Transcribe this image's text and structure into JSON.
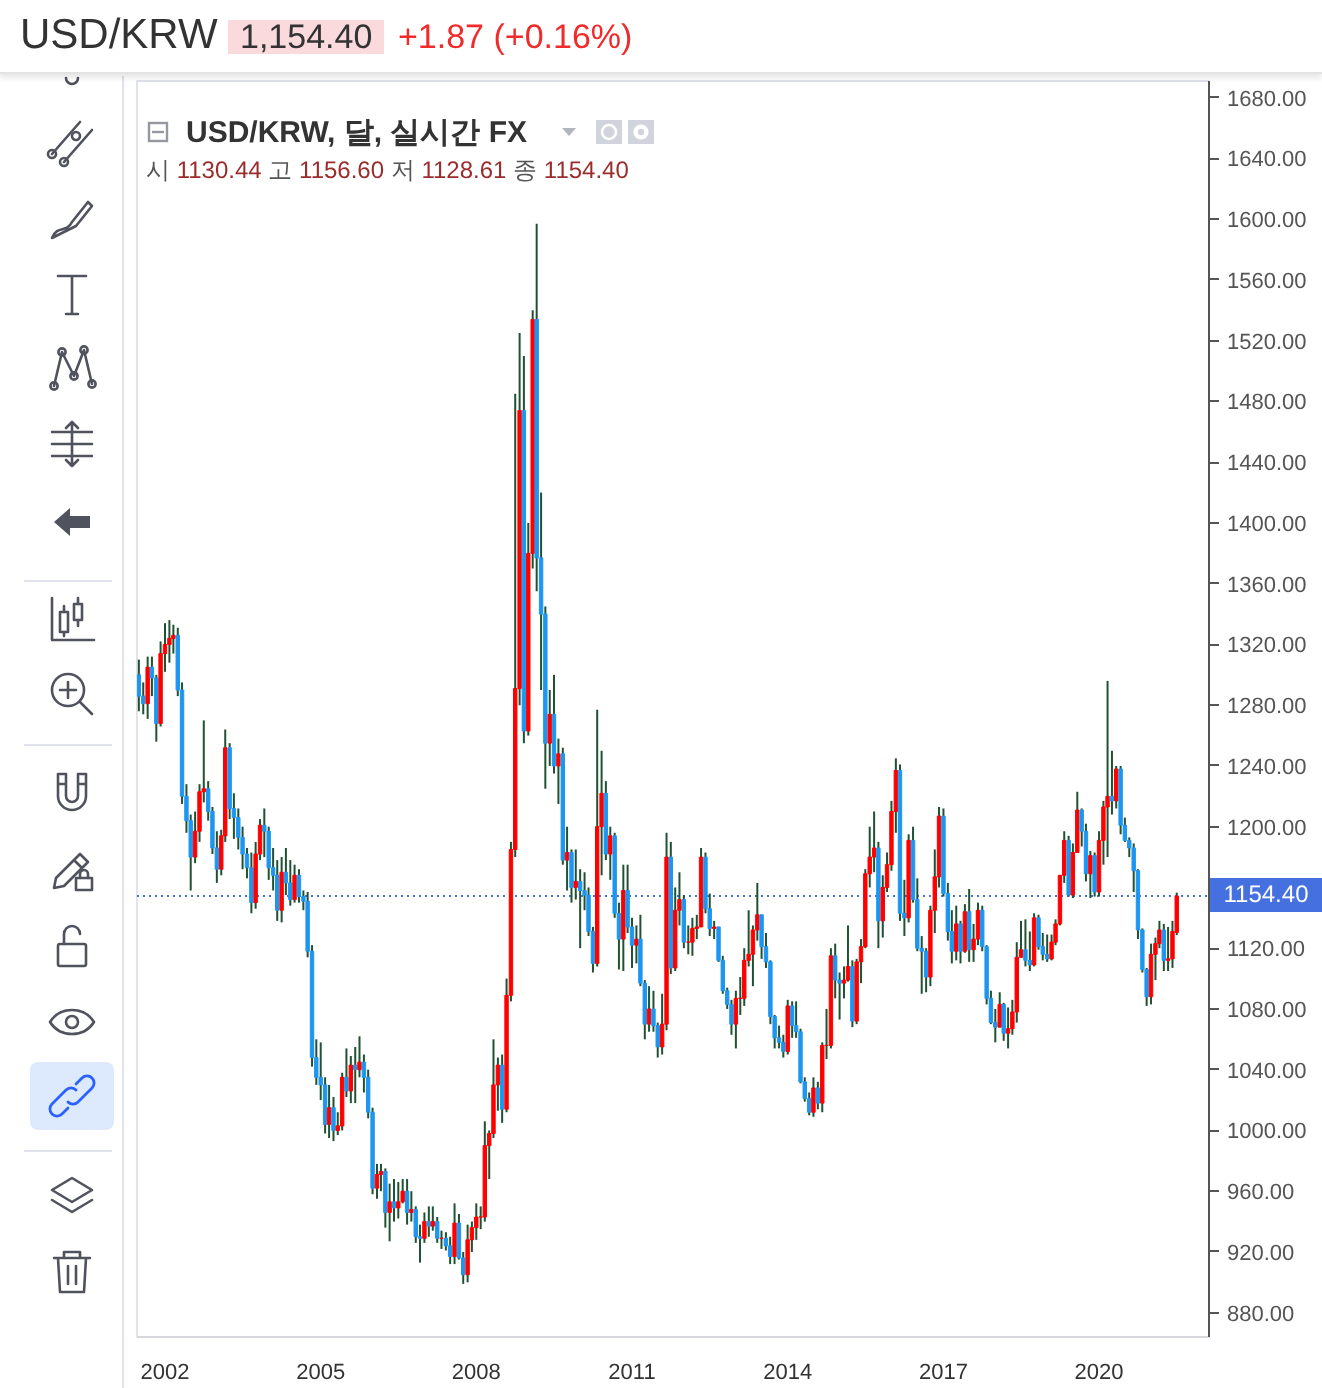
{
  "chart_data": {
    "type": "candlestick",
    "title": "USD/KRW",
    "annotations": [
      "1,154.40",
      "+1.87 (+0.16%)",
      "USD/KRW, 달, 실시간 FX",
      "시 1130.44 고 1156.60 저 1128.61 종 1154.40"
    ],
    "xlim": [
      "2001-06-18",
      "2022-02-13"
    ],
    "ylim": [
      864,
      1691
    ],
    "xticks": [
      "2002",
      "2005",
      "2008",
      "2011",
      "2014",
      "2017",
      "2020"
    ],
    "yticks": [
      {
        "value": 880,
        "label": "880.00"
      },
      {
        "value": 920,
        "label": "920.00"
      },
      {
        "value": 960,
        "label": "960.00"
      },
      {
        "value": 1000,
        "label": "1000.00"
      },
      {
        "value": 1040,
        "label": "1040.00"
      },
      {
        "value": 1080,
        "label": "1080.00"
      },
      {
        "value": 1120,
        "label": "1120.00"
      },
      {
        "value": 1200,
        "label": "1200.00"
      },
      {
        "value": 1240,
        "label": "1240.00"
      },
      {
        "value": 1280,
        "label": "1280.00"
      },
      {
        "value": 1320,
        "label": "1320.00"
      },
      {
        "value": 1360,
        "label": "1360.00"
      },
      {
        "value": 1400,
        "label": "1400.00"
      },
      {
        "value": 1440,
        "label": "1440.00"
      },
      {
        "value": 1480,
        "label": "1480.00"
      },
      {
        "value": 1520,
        "label": "1520.00"
      },
      {
        "value": 1560,
        "label": "1560.00"
      },
      {
        "value": 1600,
        "label": "1600.00"
      },
      {
        "value": 1640,
        "label": "1640.00"
      },
      {
        "value": 1680,
        "label": "1680.00"
      }
    ],
    "ref_lines": [
      {
        "axis": "y",
        "value": 1154.4,
        "label": "1154.40",
        "color": "#4470e0",
        "line_style": "dotted"
      }
    ],
    "x": [
      "2001-07",
      "2001-08",
      "2001-09",
      "2001-10",
      "2001-11",
      "2001-12",
      "2002-01",
      "2002-02",
      "2002-03",
      "2002-04",
      "2002-05",
      "2002-06",
      "2002-07",
      "2002-08",
      "2002-09",
      "2002-10",
      "2002-11",
      "2002-12",
      "2003-01",
      "2003-02",
      "2003-03",
      "2003-04",
      "2003-05",
      "2003-06",
      "2003-07",
      "2003-08",
      "2003-09",
      "2003-10",
      "2003-11",
      "2003-12",
      "2004-01",
      "2004-02",
      "2004-03",
      "2004-04",
      "2004-05",
      "2004-06",
      "2004-07",
      "2004-08",
      "2004-09",
      "2004-10",
      "2004-11",
      "2004-12",
      "2005-01",
      "2005-02",
      "2005-03",
      "2005-04",
      "2005-05",
      "2005-06",
      "2005-07",
      "2005-08",
      "2005-09",
      "2005-10",
      "2005-11",
      "2005-12",
      "2006-01",
      "2006-02",
      "2006-03",
      "2006-04",
      "2006-05",
      "2006-06",
      "2006-07",
      "2006-08",
      "2006-09",
      "2006-10",
      "2006-11",
      "2006-12",
      "2007-01",
      "2007-02",
      "2007-03",
      "2007-04",
      "2007-05",
      "2007-06",
      "2007-07",
      "2007-08",
      "2007-09",
      "2007-10",
      "2007-11",
      "2007-12",
      "2008-01",
      "2008-02",
      "2008-03",
      "2008-04",
      "2008-05",
      "2008-06",
      "2008-07",
      "2008-08",
      "2008-09",
      "2008-10",
      "2008-11",
      "2008-12",
      "2009-01",
      "2009-02",
      "2009-03",
      "2009-04",
      "2009-05",
      "2009-06",
      "2009-07",
      "2009-08",
      "2009-09",
      "2009-10",
      "2009-11",
      "2009-12",
      "2010-01",
      "2010-02",
      "2010-03",
      "2010-04",
      "2010-05",
      "2010-06",
      "2010-07",
      "2010-08",
      "2010-09",
      "2010-10",
      "2010-11",
      "2010-12",
      "2011-01",
      "2011-02",
      "2011-03",
      "2011-04",
      "2011-05",
      "2011-06",
      "2011-07",
      "2011-08",
      "2011-09",
      "2011-10",
      "2011-11",
      "2011-12",
      "2012-01",
      "2012-02",
      "2012-03",
      "2012-04",
      "2012-05",
      "2012-06",
      "2012-07",
      "2012-08",
      "2012-09",
      "2012-10",
      "2012-11",
      "2012-12",
      "2013-01",
      "2013-02",
      "2013-03",
      "2013-04",
      "2013-05",
      "2013-06",
      "2013-07",
      "2013-08",
      "2013-09",
      "2013-10",
      "2013-11",
      "2013-12",
      "2014-01",
      "2014-02",
      "2014-03",
      "2014-04",
      "2014-05",
      "2014-06",
      "2014-07",
      "2014-08",
      "2014-09",
      "2014-10",
      "2014-11",
      "2014-12",
      "2015-01",
      "2015-02",
      "2015-03",
      "2015-04",
      "2015-05",
      "2015-06",
      "2015-07",
      "2015-08",
      "2015-09",
      "2015-10",
      "2015-11",
      "2015-12",
      "2016-01",
      "2016-02",
      "2016-03",
      "2016-04",
      "2016-05",
      "2016-06",
      "2016-07",
      "2016-08",
      "2016-09",
      "2016-10",
      "2016-11",
      "2016-12",
      "2017-01",
      "2017-02",
      "2017-03",
      "2017-04",
      "2017-05",
      "2017-06",
      "2017-07",
      "2017-08",
      "2017-09",
      "2017-10",
      "2017-11",
      "2017-12",
      "2018-01",
      "2018-02",
      "2018-03",
      "2018-04",
      "2018-05",
      "2018-06",
      "2018-07",
      "2018-08",
      "2018-09",
      "2018-10",
      "2018-11",
      "2018-12",
      "2019-01",
      "2019-02",
      "2019-03",
      "2019-04",
      "2019-05",
      "2019-06",
      "2019-07",
      "2019-08",
      "2019-09",
      "2019-10",
      "2019-11",
      "2019-12",
      "2020-01",
      "2020-02",
      "2020-03",
      "2020-04",
      "2020-05",
      "2020-06",
      "2020-07",
      "2020-08",
      "2020-09",
      "2020-10",
      "2020-11",
      "2020-12",
      "2021-01",
      "2021-02",
      "2021-03",
      "2021-04",
      "2021-05",
      "2021-06",
      "2021-07"
    ],
    "ohlc": [
      [
        1300,
        1310,
        1276,
        1286
      ],
      [
        1286,
        1295,
        1274,
        1281
      ],
      [
        1281,
        1312,
        1271,
        1305
      ],
      [
        1305,
        1312,
        1286,
        1298
      ],
      [
        1298,
        1300,
        1256,
        1268
      ],
      [
        1268,
        1322,
        1266,
        1314
      ],
      [
        1314,
        1334,
        1302,
        1320
      ],
      [
        1320,
        1336,
        1308,
        1324
      ],
      [
        1324,
        1333,
        1314,
        1326
      ],
      [
        1326,
        1331,
        1286,
        1290
      ],
      [
        1290,
        1295,
        1215,
        1220
      ],
      [
        1220,
        1228,
        1196,
        1204
      ],
      [
        1204,
        1208,
        1158,
        1180
      ],
      [
        1180,
        1210,
        1176,
        1197
      ],
      [
        1197,
        1228,
        1190,
        1223
      ],
      [
        1223,
        1270,
        1216,
        1225
      ],
      [
        1225,
        1230,
        1204,
        1210
      ],
      [
        1210,
        1213,
        1182,
        1186
      ],
      [
        1186,
        1197,
        1163,
        1172
      ],
      [
        1172,
        1198,
        1168,
        1194
      ],
      [
        1194,
        1264,
        1190,
        1252
      ],
      [
        1252,
        1255,
        1205,
        1212
      ],
      [
        1212,
        1222,
        1192,
        1206
      ],
      [
        1206,
        1212,
        1185,
        1193
      ],
      [
        1193,
        1200,
        1172,
        1182
      ],
      [
        1182,
        1186,
        1166,
        1173
      ],
      [
        1173,
        1183,
        1143,
        1150
      ],
      [
        1150,
        1190,
        1146,
        1182
      ],
      [
        1182,
        1205,
        1178,
        1201
      ],
      [
        1201,
        1212,
        1180,
        1197
      ],
      [
        1197,
        1200,
        1165,
        1173
      ],
      [
        1173,
        1186,
        1158,
        1168
      ],
      [
        1168,
        1178,
        1138,
        1145
      ],
      [
        1145,
        1180,
        1137,
        1170
      ],
      [
        1170,
        1186,
        1155,
        1163
      ],
      [
        1163,
        1178,
        1148,
        1152
      ],
      [
        1152,
        1175,
        1150,
        1168
      ],
      [
        1168,
        1172,
        1150,
        1154
      ],
      [
        1154,
        1158,
        1145,
        1151
      ],
      [
        1151,
        1157,
        1114,
        1118
      ],
      [
        1118,
        1122,
        1042,
        1048
      ],
      [
        1048,
        1060,
        1030,
        1035
      ],
      [
        1035,
        1058,
        1020,
        1030
      ],
      [
        1030,
        1035,
        998,
        1004
      ],
      [
        1004,
        1030,
        995,
        1015
      ],
      [
        1015,
        1022,
        993,
        1000
      ],
      [
        1000,
        1012,
        997,
        1003
      ],
      [
        1003,
        1038,
        1000,
        1035
      ],
      [
        1035,
        1054,
        1022,
        1026
      ],
      [
        1026,
        1049,
        1018,
        1043
      ],
      [
        1043,
        1055,
        1018,
        1040
      ],
      [
        1040,
        1062,
        1035,
        1045
      ],
      [
        1045,
        1050,
        1025,
        1035
      ],
      [
        1035,
        1040,
        1008,
        1012
      ],
      [
        1012,
        1015,
        958,
        962
      ],
      [
        962,
        978,
        955,
        971
      ],
      [
        971,
        978,
        960,
        973
      ],
      [
        973,
        975,
        936,
        946
      ],
      [
        946,
        965,
        927,
        953
      ],
      [
        953,
        968,
        940,
        949
      ],
      [
        949,
        966,
        942,
        953
      ],
      [
        953,
        968,
        952,
        960
      ],
      [
        960,
        968,
        938,
        946
      ],
      [
        946,
        960,
        940,
        948
      ],
      [
        948,
        950,
        926,
        930
      ],
      [
        930,
        938,
        913,
        929
      ],
      [
        929,
        946,
        926,
        940
      ],
      [
        940,
        950,
        930,
        937
      ],
      [
        937,
        950,
        934,
        940
      ],
      [
        940,
        943,
        926,
        929
      ],
      [
        929,
        934,
        922,
        929
      ],
      [
        929,
        933,
        921,
        924
      ],
      [
        924,
        930,
        912,
        917
      ],
      [
        917,
        952,
        912,
        939
      ],
      [
        939,
        945,
        915,
        916
      ],
      [
        916,
        920,
        899,
        905
      ],
      [
        905,
        938,
        900,
        928
      ],
      [
        928,
        940,
        920,
        936
      ],
      [
        936,
        952,
        928,
        943
      ],
      [
        943,
        950,
        935,
        943
      ],
      [
        943,
        1006,
        940,
        990
      ],
      [
        990,
        1000,
        968,
        998
      ],
      [
        998,
        1060,
        995,
        1030
      ],
      [
        1030,
        1048,
        1013,
        1043
      ],
      [
        1043,
        1050,
        1005,
        1014
      ],
      [
        1014,
        1100,
        1012,
        1089
      ],
      [
        1089,
        1190,
        1085,
        1185
      ],
      [
        1185,
        1485,
        1180,
        1291
      ],
      [
        1291,
        1525,
        1280,
        1474
      ],
      [
        1474,
        1510,
        1255,
        1263
      ],
      [
        1263,
        1400,
        1260,
        1380
      ],
      [
        1380,
        1540,
        1370,
        1534
      ],
      [
        1534,
        1597,
        1355,
        1377
      ],
      [
        1377,
        1420,
        1290,
        1340
      ],
      [
        1340,
        1345,
        1225,
        1255
      ],
      [
        1255,
        1290,
        1240,
        1274
      ],
      [
        1274,
        1300,
        1235,
        1240
      ],
      [
        1240,
        1258,
        1215,
        1248
      ],
      [
        1248,
        1252,
        1175,
        1178
      ],
      [
        1178,
        1200,
        1158,
        1183
      ],
      [
        1183,
        1185,
        1150,
        1160
      ],
      [
        1160,
        1185,
        1152,
        1164
      ],
      [
        1164,
        1172,
        1120,
        1158
      ],
      [
        1158,
        1170,
        1145,
        1155
      ],
      [
        1155,
        1160,
        1128,
        1131
      ],
      [
        1131,
        1134,
        1104,
        1110
      ],
      [
        1110,
        1277,
        1108,
        1200
      ],
      [
        1200,
        1250,
        1168,
        1222
      ],
      [
        1222,
        1230,
        1178,
        1182
      ],
      [
        1182,
        1200,
        1165,
        1194
      ],
      [
        1194,
        1196,
        1140,
        1143
      ],
      [
        1143,
        1150,
        1106,
        1126
      ],
      [
        1126,
        1175,
        1105,
        1158
      ],
      [
        1158,
        1175,
        1130,
        1134
      ],
      [
        1134,
        1140,
        1107,
        1122
      ],
      [
        1122,
        1135,
        1110,
        1126
      ],
      [
        1126,
        1142,
        1095,
        1097
      ],
      [
        1097,
        1099,
        1060,
        1070
      ],
      [
        1070,
        1095,
        1065,
        1080
      ],
      [
        1080,
        1092,
        1065,
        1069
      ],
      [
        1069,
        1071,
        1048,
        1055
      ],
      [
        1055,
        1090,
        1050,
        1070
      ],
      [
        1070,
        1196,
        1066,
        1180
      ],
      [
        1180,
        1190,
        1103,
        1107
      ],
      [
        1107,
        1160,
        1105,
        1145
      ],
      [
        1145,
        1170,
        1135,
        1152
      ],
      [
        1152,
        1155,
        1120,
        1124
      ],
      [
        1124,
        1135,
        1116,
        1124
      ],
      [
        1124,
        1140,
        1115,
        1133
      ],
      [
        1133,
        1142,
        1126,
        1134
      ],
      [
        1134,
        1186,
        1134,
        1180
      ],
      [
        1180,
        1183,
        1143,
        1146
      ],
      [
        1146,
        1156,
        1128,
        1133
      ],
      [
        1133,
        1138,
        1126,
        1134
      ],
      [
        1134,
        1134,
        1111,
        1112
      ],
      [
        1112,
        1115,
        1090,
        1092
      ],
      [
        1092,
        1094,
        1080,
        1083
      ],
      [
        1083,
        1086,
        1063,
        1070
      ],
      [
        1070,
        1092,
        1054,
        1087
      ],
      [
        1087,
        1101,
        1076,
        1087
      ],
      [
        1087,
        1120,
        1082,
        1112
      ],
      [
        1112,
        1145,
        1108,
        1116
      ],
      [
        1116,
        1135,
        1095,
        1132
      ],
      [
        1132,
        1163,
        1125,
        1142
      ],
      [
        1142,
        1142,
        1113,
        1121
      ],
      [
        1121,
        1130,
        1107,
        1111
      ],
      [
        1111,
        1112,
        1070,
        1075
      ],
      [
        1075,
        1076,
        1054,
        1061
      ],
      [
        1061,
        1069,
        1054,
        1058
      ],
      [
        1058,
        1063,
        1048,
        1052
      ],
      [
        1052,
        1086,
        1050,
        1082
      ],
      [
        1082,
        1085,
        1061,
        1069
      ],
      [
        1069,
        1085,
        1061,
        1065
      ],
      [
        1065,
        1067,
        1031,
        1032
      ],
      [
        1032,
        1035,
        1019,
        1021
      ],
      [
        1021,
        1025,
        1010,
        1012
      ],
      [
        1012,
        1035,
        1009,
        1028
      ],
      [
        1028,
        1032,
        1014,
        1018
      ],
      [
        1018,
        1058,
        1012,
        1056
      ],
      [
        1056,
        1080,
        1047,
        1056
      ],
      [
        1056,
        1120,
        1054,
        1115
      ],
      [
        1115,
        1123,
        1087,
        1099
      ],
      [
        1099,
        1104,
        1073,
        1097
      ],
      [
        1097,
        1108,
        1087,
        1099
      ],
      [
        1099,
        1135,
        1098,
        1108
      ],
      [
        1108,
        1112,
        1068,
        1072
      ],
      [
        1072,
        1113,
        1070,
        1111
      ],
      [
        1111,
        1126,
        1097,
        1121
      ],
      [
        1121,
        1172,
        1120,
        1169
      ],
      [
        1169,
        1200,
        1160,
        1180
      ],
      [
        1180,
        1210,
        1170,
        1186
      ],
      [
        1186,
        1190,
        1120,
        1138
      ],
      [
        1138,
        1168,
        1127,
        1160
      ],
      [
        1160,
        1183,
        1157,
        1175
      ],
      [
        1175,
        1217,
        1171,
        1210
      ],
      [
        1210,
        1245,
        1196,
        1237
      ],
      [
        1237,
        1241,
        1138,
        1143
      ],
      [
        1143,
        1165,
        1128,
        1140
      ],
      [
        1140,
        1195,
        1137,
        1191
      ],
      [
        1191,
        1200,
        1150,
        1152
      ],
      [
        1152,
        1166,
        1118,
        1120
      ],
      [
        1120,
        1128,
        1090,
        1118
      ],
      [
        1118,
        1120,
        1091,
        1101
      ],
      [
        1101,
        1148,
        1095,
        1145
      ],
      [
        1145,
        1185,
        1130,
        1167
      ],
      [
        1167,
        1213,
        1160,
        1207
      ],
      [
        1207,
        1212,
        1154,
        1156
      ],
      [
        1156,
        1163,
        1125,
        1131
      ],
      [
        1131,
        1145,
        1110,
        1118
      ],
      [
        1118,
        1148,
        1112,
        1136
      ],
      [
        1136,
        1138,
        1110,
        1118
      ],
      [
        1118,
        1149,
        1117,
        1144
      ],
      [
        1144,
        1159,
        1111,
        1119
      ],
      [
        1119,
        1136,
        1111,
        1126
      ],
      [
        1126,
        1150,
        1122,
        1145
      ],
      [
        1145,
        1148,
        1118,
        1121
      ],
      [
        1121,
        1122,
        1083,
        1087
      ],
      [
        1087,
        1092,
        1070,
        1071
      ],
      [
        1071,
        1080,
        1058,
        1068
      ],
      [
        1068,
        1091,
        1068,
        1083
      ],
      [
        1083,
        1084,
        1059,
        1064
      ],
      [
        1064,
        1081,
        1054,
        1067
      ],
      [
        1067,
        1086,
        1063,
        1078
      ],
      [
        1078,
        1124,
        1071,
        1114
      ],
      [
        1114,
        1138,
        1114,
        1119
      ],
      [
        1119,
        1139,
        1108,
        1112
      ],
      [
        1112,
        1131,
        1105,
        1109
      ],
      [
        1109,
        1143,
        1108,
        1140
      ],
      [
        1140,
        1142,
        1119,
        1121
      ],
      [
        1121,
        1130,
        1112,
        1116
      ],
      [
        1116,
        1129,
        1111,
        1113
      ],
      [
        1113,
        1129,
        1112,
        1124
      ],
      [
        1124,
        1139,
        1122,
        1136
      ],
      [
        1136,
        1168,
        1135,
        1168
      ],
      [
        1168,
        1197,
        1163,
        1191
      ],
      [
        1191,
        1194,
        1154,
        1155
      ],
      [
        1155,
        1189,
        1153,
        1183
      ],
      [
        1183,
        1223,
        1183,
        1211
      ],
      [
        1211,
        1212,
        1187,
        1197
      ],
      [
        1197,
        1202,
        1164,
        1169
      ],
      [
        1169,
        1184,
        1153,
        1181
      ],
      [
        1181,
        1183,
        1154,
        1157
      ],
      [
        1157,
        1197,
        1154,
        1191
      ],
      [
        1191,
        1217,
        1175,
        1213
      ],
      [
        1213,
        1296,
        1180,
        1220
      ],
      [
        1220,
        1250,
        1208,
        1217
      ],
      [
        1217,
        1240,
        1212,
        1238
      ],
      [
        1238,
        1240,
        1195,
        1201
      ],
      [
        1201,
        1206,
        1190,
        1191
      ],
      [
        1191,
        1193,
        1180,
        1186
      ],
      [
        1186,
        1189,
        1157,
        1171
      ],
      [
        1171,
        1172,
        1126,
        1132
      ],
      [
        1132,
        1133,
        1104,
        1106
      ],
      [
        1106,
        1107,
        1082,
        1088
      ],
      [
        1088,
        1123,
        1083,
        1116
      ],
      [
        1116,
        1127,
        1099,
        1123
      ],
      [
        1123,
        1138,
        1120,
        1132
      ],
      [
        1132,
        1136,
        1105,
        1112
      ],
      [
        1112,
        1134,
        1105,
        1113
      ],
      [
        1113,
        1138,
        1107,
        1131
      ],
      [
        1130.44,
        1156.6,
        1128.61,
        1154.4
      ]
    ],
    "colors": [
      "#1e96f0",
      "#1e96f0",
      "#ff0000",
      "#1e96f0",
      "#1e96f0",
      "#ff0000",
      "#ff0000",
      "#ff0000",
      "#ff0000",
      "#1e96f0",
      "#1e96f0",
      "#1e96f0",
      "#1e96f0",
      "#ff0000",
      "#ff0000",
      "#ff0000",
      "#1e96f0",
      "#1e96f0",
      "#1e96f0",
      "#ff0000",
      "#ff0000",
      "#1e96f0",
      "#1e96f0",
      "#1e96f0",
      "#1e96f0",
      "#1e96f0",
      "#1e96f0",
      "#ff0000",
      "#ff0000",
      "#1e96f0",
      "#1e96f0",
      "#1e96f0",
      "#1e96f0",
      "#ff0000",
      "#1e96f0",
      "#1e96f0",
      "#ff0000",
      "#1e96f0",
      "#1e96f0",
      "#1e96f0",
      "#1e96f0",
      "#1e96f0",
      "#1e96f0",
      "#1e96f0",
      "#ff0000",
      "#1e96f0",
      "#ff0000",
      "#ff0000",
      "#1e96f0",
      "#ff0000",
      "#1e96f0",
      "#ff0000",
      "#1e96f0",
      "#1e96f0",
      "#1e96f0",
      "#ff0000",
      "#ff0000",
      "#1e96f0",
      "#ff0000",
      "#1e96f0",
      "#ff0000",
      "#ff0000",
      "#1e96f0",
      "#ff0000",
      "#1e96f0",
      "#1e96f0",
      "#ff0000",
      "#1e96f0",
      "#ff0000",
      "#1e96f0",
      "#ff0000",
      "#1e96f0",
      "#1e96f0",
      "#ff0000",
      "#1e96f0",
      "#1e96f0",
      "#ff0000",
      "#ff0000",
      "#ff0000",
      "#ff0000",
      "#ff0000",
      "#ff0000",
      "#ff0000",
      "#ff0000",
      "#1e96f0",
      "#ff0000",
      "#ff0000",
      "#ff0000",
      "#ff0000",
      "#1e96f0",
      "#ff0000",
      "#ff0000",
      "#1e96f0",
      "#1e96f0",
      "#1e96f0",
      "#ff0000",
      "#1e96f0",
      "#ff0000",
      "#1e96f0",
      "#ff0000",
      "#1e96f0",
      "#ff0000",
      "#1e96f0",
      "#1e96f0",
      "#1e96f0",
      "#1e96f0",
      "#ff0000",
      "#ff0000",
      "#1e96f0",
      "#ff0000",
      "#1e96f0",
      "#1e96f0",
      "#ff0000",
      "#1e96f0",
      "#1e96f0",
      "#ff0000",
      "#1e96f0",
      "#1e96f0",
      "#ff0000",
      "#1e96f0",
      "#1e96f0",
      "#ff0000",
      "#ff0000",
      "#1e96f0",
      "#ff0000",
      "#ff0000",
      "#1e96f0",
      "#ff0000",
      "#ff0000",
      "#ff0000",
      "#ff0000",
      "#1e96f0",
      "#1e96f0",
      "#ff0000",
      "#1e96f0",
      "#1e96f0",
      "#1e96f0",
      "#1e96f0",
      "#ff0000",
      "#ff0000",
      "#ff0000",
      "#ff0000",
      "#ff0000",
      "#ff0000",
      "#1e96f0",
      "#1e96f0",
      "#1e96f0",
      "#1e96f0",
      "#1e96f0",
      "#1e96f0",
      "#ff0000",
      "#1e96f0",
      "#1e96f0",
      "#1e96f0",
      "#1e96f0",
      "#1e96f0",
      "#ff0000",
      "#1e96f0",
      "#ff0000",
      "#ff0000",
      "#ff0000",
      "#1e96f0",
      "#1e96f0",
      "#ff0000",
      "#ff0000",
      "#1e96f0",
      "#ff0000",
      "#ff0000",
      "#ff0000",
      "#ff0000",
      "#ff0000",
      "#1e96f0",
      "#ff0000",
      "#ff0000",
      "#ff0000",
      "#ff0000",
      "#1e96f0",
      "#1e96f0",
      "#ff0000",
      "#1e96f0",
      "#1e96f0",
      "#1e96f0",
      "#1e96f0",
      "#ff0000",
      "#ff0000",
      "#ff0000",
      "#1e96f0",
      "#1e96f0",
      "#1e96f0",
      "#ff0000",
      "#1e96f0",
      "#ff0000",
      "#1e96f0",
      "#ff0000",
      "#ff0000",
      "#1e96f0",
      "#1e96f0",
      "#1e96f0",
      "#1e96f0",
      "#ff0000",
      "#1e96f0",
      "#ff0000",
      "#ff0000",
      "#ff0000",
      "#ff0000",
      "#1e96f0",
      "#1e96f0",
      "#ff0000",
      "#1e96f0",
      "#1e96f0",
      "#1e96f0",
      "#ff0000",
      "#ff0000",
      "#ff0000",
      "#ff0000",
      "#1e96f0",
      "#ff0000",
      "#ff0000",
      "#1e96f0",
      "#1e96f0",
      "#ff0000",
      "#1e96f0",
      "#ff0000",
      "#ff0000",
      "#ff0000",
      "#1e96f0",
      "#ff0000",
      "#1e96f0",
      "#1e96f0",
      "#1e96f0",
      "#1e96f0",
      "#1e96f0",
      "#1e96f0",
      "#1e96f0",
      "#ff0000",
      "#ff0000",
      "#ff0000",
      "#1e96f0",
      "#ff0000",
      "#ff0000",
      "#ff0000"
    ]
  }
}
